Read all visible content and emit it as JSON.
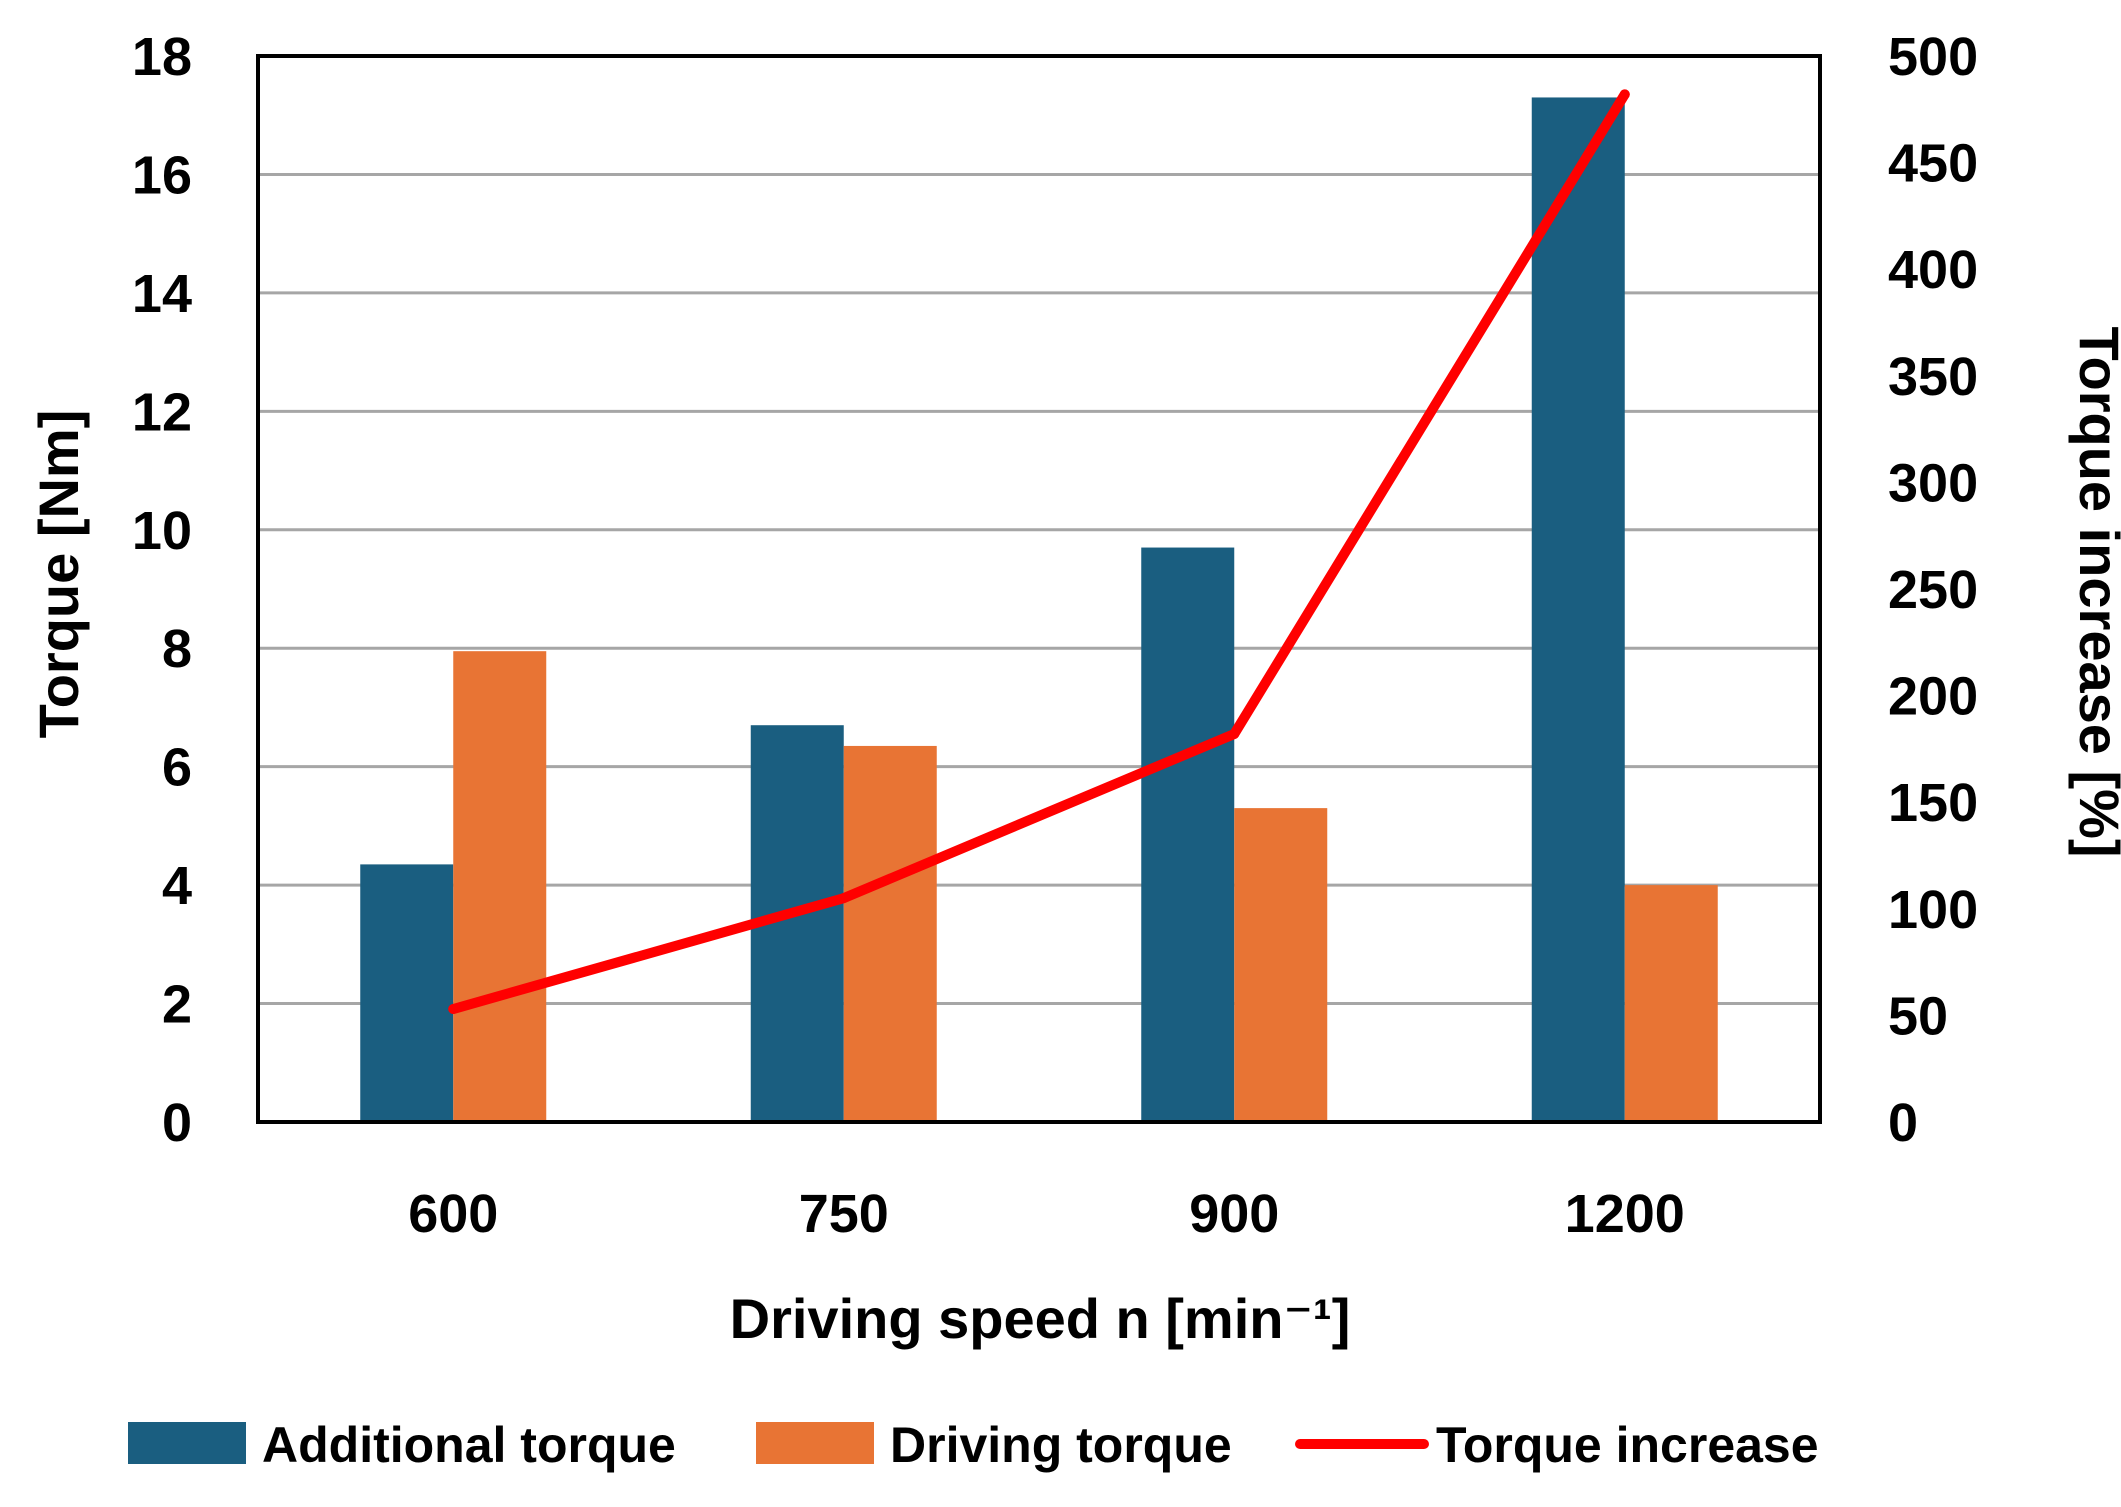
{
  "chart_data": {
    "type": "bar",
    "title": "",
    "xlabel": "Driving speed n [min⁻¹]",
    "ylabel": "Torque  [Nm]",
    "y2label": "Torque increase [%]",
    "categories": [
      "600",
      "750",
      "900",
      "1200"
    ],
    "ylim": [
      0,
      18
    ],
    "yticks": [
      "0",
      "2",
      "4",
      "6",
      "8",
      "10",
      "12",
      "14",
      "16",
      "18"
    ],
    "y2lim": [
      0,
      500
    ],
    "y2ticks": [
      "0",
      "50",
      "100",
      "150",
      "200",
      "250",
      "300",
      "350",
      "400",
      "450",
      "500"
    ],
    "grid": true,
    "legend_position": "bottom",
    "series": [
      {
        "name": "Additional torque",
        "type": "bar",
        "axis": "left",
        "color": "#1a5e80",
        "values": [
          4.35,
          6.7,
          9.7,
          17.3
        ]
      },
      {
        "name": "Driving torque",
        "type": "bar",
        "axis": "left",
        "color": "#e87434",
        "values": [
          7.95,
          6.35,
          5.3,
          4.0
        ]
      },
      {
        "name": "Torque increase",
        "type": "line",
        "axis": "right",
        "color": "#ff0000",
        "values": [
          53,
          105,
          182,
          482
        ]
      }
    ]
  }
}
